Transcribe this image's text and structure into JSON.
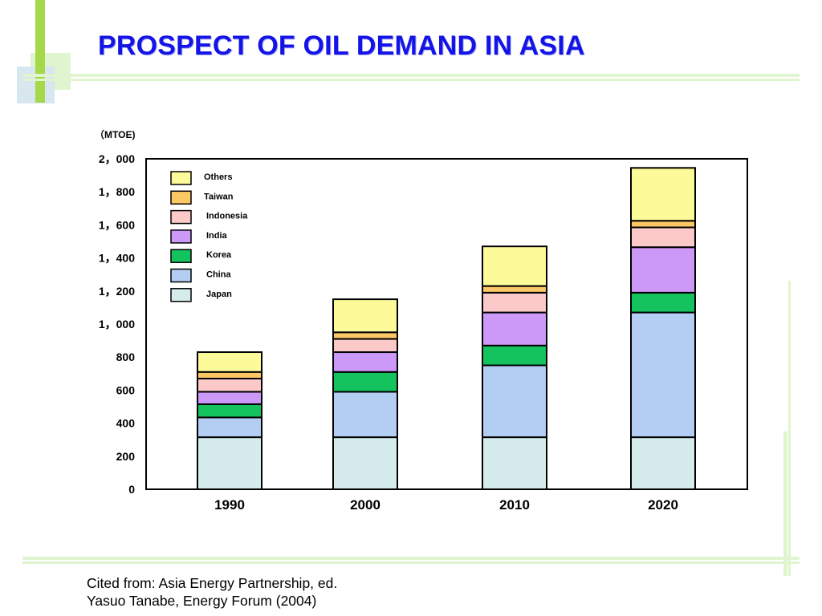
{
  "slide": {
    "title": "PROSPECT OF OIL DEMAND IN ASIA",
    "caption_line1": "Cited from: Asia Energy Partnership, ed.",
    "caption_line2": "Yasuo Tanabe, Energy Forum (2004)"
  },
  "colors": {
    "title": "#1414e6",
    "accent_green": "#a6d94a",
    "decor_light_green": "#e0f5cf",
    "decor_blue_grey": "#d7e6ef"
  },
  "chart_data": {
    "type": "bar",
    "stacked": true,
    "unit_label": "（MTOE)",
    "categories": [
      "1990",
      "2000",
      "2010",
      "2020"
    ],
    "ylim": [
      0,
      2000
    ],
    "y_ticks": [
      {
        "value": 0,
        "label": "0"
      },
      {
        "value": 200,
        "label": "200"
      },
      {
        "value": 400,
        "label": "400"
      },
      {
        "value": 600,
        "label": "600"
      },
      {
        "value": 800,
        "label": "800"
      },
      {
        "value": 1000,
        "label": "1，000"
      },
      {
        "value": 1200,
        "label": "1，200"
      },
      {
        "value": 1400,
        "label": "1，400"
      },
      {
        "value": 1600,
        "label": "1，600"
      },
      {
        "value": 1800,
        "label": "1，800"
      },
      {
        "value": 2000,
        "label": "2，000"
      }
    ],
    "legend_position": "top-left",
    "series": [
      {
        "name": "Japan",
        "color": "#d6ecec",
        "values": [
          315,
          315,
          315,
          315
        ]
      },
      {
        "name": "China",
        "color": "#b3cdf3",
        "values": [
          120,
          275,
          435,
          755
        ]
      },
      {
        "name": "Korea",
        "color": "#14c25e",
        "values": [
          80,
          120,
          120,
          120
        ]
      },
      {
        "name": "India",
        "color": "#cc99f8",
        "values": [
          75,
          120,
          200,
          275
        ]
      },
      {
        "name": "Indonesia",
        "color": "#fcc9c9",
        "values": [
          80,
          80,
          120,
          120
        ]
      },
      {
        "name": "Taiwan",
        "color": "#fcc866",
        "values": [
          40,
          40,
          40,
          40
        ]
      },
      {
        "name": "Others",
        "color": "#fdfa9a",
        "values": [
          120,
          200,
          240,
          320
        ]
      }
    ]
  }
}
